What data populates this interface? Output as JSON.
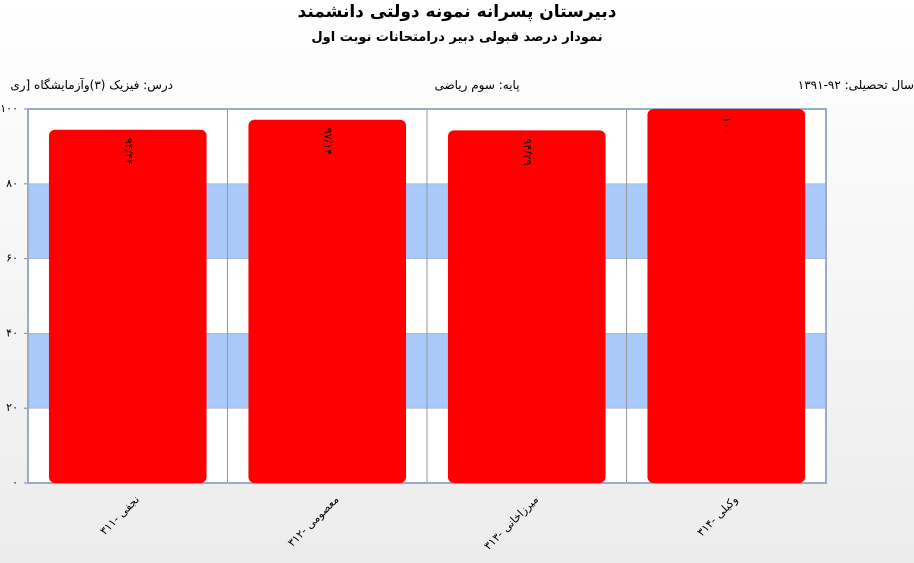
{
  "chart_data": {
    "type": "bar",
    "title": "دبیرستان پسرانه نمونه دولتی دانشمند",
    "subtitle": "نمودار درصد قبولی دبیر درامتحانات نوبت اول",
    "info": {
      "course": "درس: فیزیک (۳)وآزمایشگاه [ری",
      "grade": "پایه: سوم ریاضی",
      "year": "سال تحصیلی: ۹۲-۱۳۹۱"
    },
    "categories": [
      "نجفی -۳۱۱",
      "معصومی -۳۱۲",
      "میرزاخانی -۳۱۳",
      "وکیلی -۳۱۴"
    ],
    "values": [
      94.44,
      97.14,
      94.29,
      100
    ],
    "value_labels": [
      "۹۴/۴۴",
      "۹۷/۱۴",
      "۹۴/۲۹",
      "۱۰۰"
    ],
    "color": "#ff0000",
    "band_color": "#a9c9fb",
    "ylim": [
      0,
      100
    ],
    "yticks": [
      {
        "value": 0,
        "label": "۰"
      },
      {
        "value": 20,
        "label": "۲۰"
      },
      {
        "value": 40,
        "label": "۴۰"
      },
      {
        "value": 60,
        "label": "۶۰"
      },
      {
        "value": 80,
        "label": "۸۰"
      },
      {
        "value": 100,
        "label": "۱۰۰"
      }
    ],
    "grid": true
  }
}
